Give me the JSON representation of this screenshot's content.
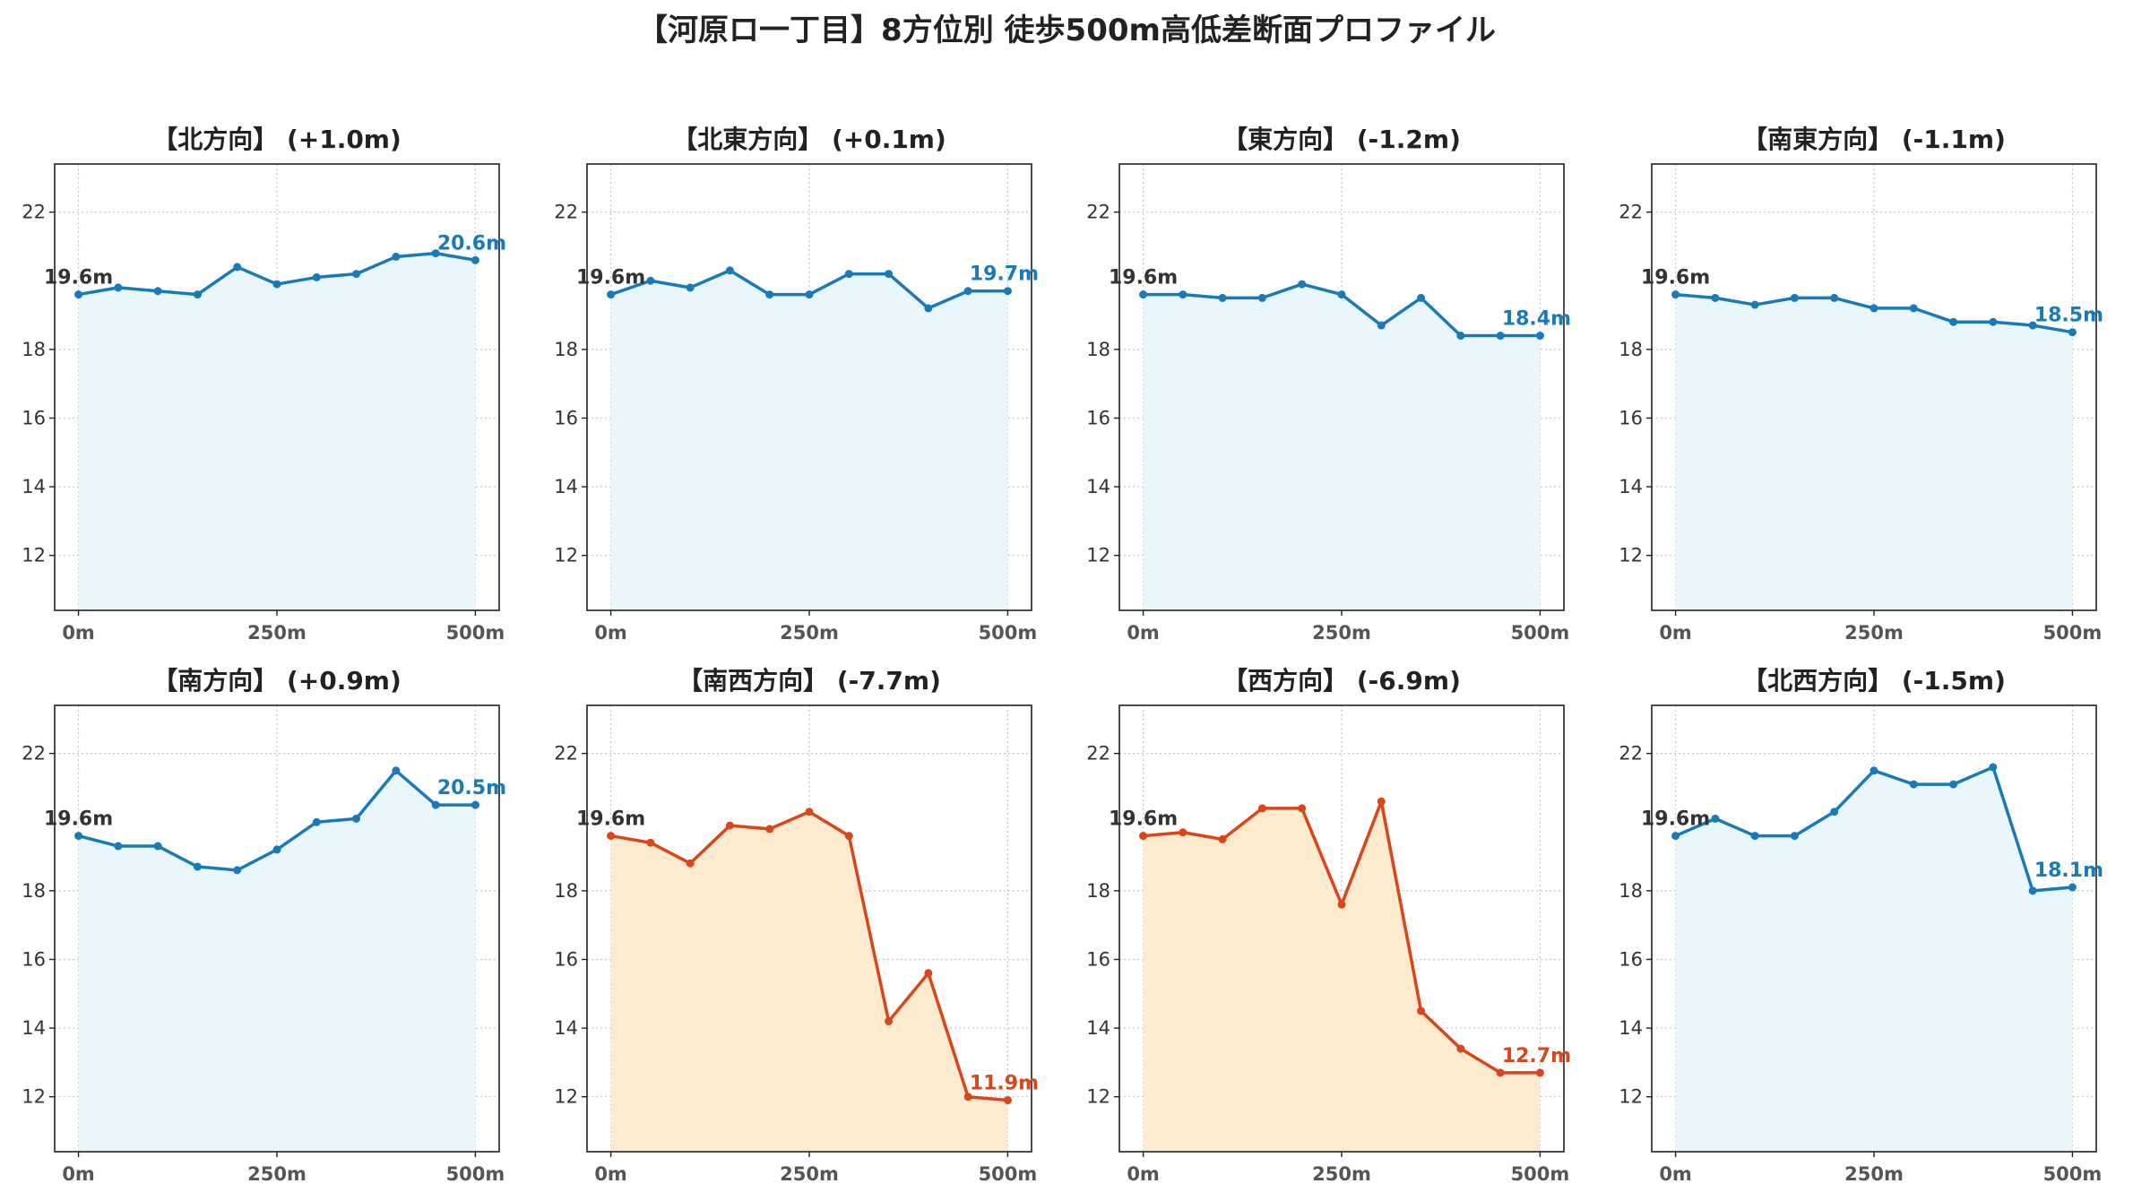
{
  "title": "【河原ロ一丁目】8方位別 徒歩500m高低差断面プロファイル",
  "colors": {
    "up_line": "#1a7ab8",
    "up_fill": "#e9f6fb",
    "down_line": "#d9461a",
    "down_fill": "#fdebd0",
    "start_label": "#333333",
    "grid": "#c8c8c8"
  },
  "chart_data": [
    {
      "type": "area",
      "title": "【北方向】 (+1.0m)",
      "x": [
        0,
        50,
        100,
        150,
        200,
        250,
        300,
        350,
        400,
        450,
        500
      ],
      "values": [
        19.6,
        19.8,
        19.7,
        19.6,
        20.4,
        19.9,
        20.1,
        20.2,
        20.7,
        20.8,
        20.6
      ],
      "start_label": "19.6m",
      "end_label": "20.6m",
      "trend": "up",
      "xticks": [
        "0m",
        "250m",
        "500m"
      ],
      "yticks": [
        12,
        14,
        16,
        18,
        22
      ],
      "ylim": [
        10.4,
        23.4
      ],
      "xlim": [
        -30,
        530
      ],
      "grid": true
    },
    {
      "type": "area",
      "title": "【北東方向】 (+0.1m)",
      "x": [
        0,
        50,
        100,
        150,
        200,
        250,
        300,
        350,
        400,
        450,
        500
      ],
      "values": [
        19.6,
        20.0,
        19.8,
        20.3,
        19.6,
        19.6,
        20.2,
        20.2,
        19.2,
        19.7,
        19.7
      ],
      "start_label": "19.6m",
      "end_label": "19.7m",
      "trend": "up",
      "xticks": [
        "0m",
        "250m",
        "500m"
      ],
      "yticks": [
        12,
        14,
        16,
        18,
        22
      ],
      "ylim": [
        10.4,
        23.4
      ],
      "xlim": [
        -30,
        530
      ],
      "grid": true
    },
    {
      "type": "area",
      "title": "【東方向】 (-1.2m)",
      "x": [
        0,
        50,
        100,
        150,
        200,
        250,
        300,
        350,
        400,
        450,
        500
      ],
      "values": [
        19.6,
        19.6,
        19.5,
        19.5,
        19.9,
        19.6,
        18.7,
        19.5,
        18.4,
        18.4,
        18.4
      ],
      "start_label": "19.6m",
      "end_label": "18.4m",
      "trend": "up",
      "xticks": [
        "0m",
        "250m",
        "500m"
      ],
      "yticks": [
        12,
        14,
        16,
        18,
        22
      ],
      "ylim": [
        10.4,
        23.4
      ],
      "xlim": [
        -30,
        530
      ],
      "grid": true
    },
    {
      "type": "area",
      "title": "【南東方向】 (-1.1m)",
      "x": [
        0,
        50,
        100,
        150,
        200,
        250,
        300,
        350,
        400,
        450,
        500
      ],
      "values": [
        19.6,
        19.5,
        19.3,
        19.5,
        19.5,
        19.2,
        19.2,
        18.8,
        18.8,
        18.7,
        18.5
      ],
      "start_label": "19.6m",
      "end_label": "18.5m",
      "trend": "up",
      "xticks": [
        "0m",
        "250m",
        "500m"
      ],
      "yticks": [
        12,
        14,
        16,
        18,
        22
      ],
      "ylim": [
        10.4,
        23.4
      ],
      "xlim": [
        -30,
        530
      ],
      "grid": true
    },
    {
      "type": "area",
      "title": "【南方向】 (+0.9m)",
      "x": [
        0,
        50,
        100,
        150,
        200,
        250,
        300,
        350,
        400,
        450,
        500
      ],
      "values": [
        19.6,
        19.3,
        19.3,
        18.7,
        18.6,
        19.2,
        20.0,
        20.1,
        21.5,
        20.5,
        20.5
      ],
      "start_label": "19.6m",
      "end_label": "20.5m",
      "trend": "up",
      "xticks": [
        "0m",
        "250m",
        "500m"
      ],
      "yticks": [
        12,
        14,
        16,
        18,
        22
      ],
      "ylim": [
        10.4,
        23.4
      ],
      "xlim": [
        -30,
        530
      ],
      "grid": true
    },
    {
      "type": "area",
      "title": "【南西方向】 (-7.7m)",
      "x": [
        0,
        50,
        100,
        150,
        200,
        250,
        300,
        350,
        400,
        450,
        500
      ],
      "values": [
        19.6,
        19.4,
        18.8,
        19.9,
        19.8,
        20.3,
        19.6,
        14.2,
        15.6,
        12.0,
        11.9
      ],
      "start_label": "19.6m",
      "end_label": "11.9m",
      "trend": "down",
      "xticks": [
        "0m",
        "250m",
        "500m"
      ],
      "yticks": [
        12,
        14,
        16,
        18,
        22
      ],
      "ylim": [
        10.4,
        23.4
      ],
      "xlim": [
        -30,
        530
      ],
      "grid": true
    },
    {
      "type": "area",
      "title": "【西方向】 (-6.9m)",
      "x": [
        0,
        50,
        100,
        150,
        200,
        250,
        300,
        350,
        400,
        450,
        500
      ],
      "values": [
        19.6,
        19.7,
        19.5,
        20.4,
        20.4,
        17.6,
        20.6,
        14.5,
        13.4,
        12.7,
        12.7
      ],
      "start_label": "19.6m",
      "end_label": "12.7m",
      "trend": "down",
      "xticks": [
        "0m",
        "250m",
        "500m"
      ],
      "yticks": [
        12,
        14,
        16,
        18,
        22
      ],
      "ylim": [
        10.4,
        23.4
      ],
      "xlim": [
        -30,
        530
      ],
      "grid": true
    },
    {
      "type": "area",
      "title": "【北西方向】 (-1.5m)",
      "x": [
        0,
        50,
        100,
        150,
        200,
        250,
        300,
        350,
        400,
        450,
        500
      ],
      "values": [
        19.6,
        20.1,
        19.6,
        19.6,
        20.3,
        21.5,
        21.1,
        21.1,
        21.6,
        18.0,
        18.1
      ],
      "start_label": "19.6m",
      "end_label": "18.1m",
      "trend": "up",
      "xticks": [
        "0m",
        "250m",
        "500m"
      ],
      "yticks": [
        12,
        14,
        16,
        18,
        22
      ],
      "ylim": [
        10.4,
        23.4
      ],
      "xlim": [
        -30,
        530
      ],
      "grid": true
    }
  ]
}
